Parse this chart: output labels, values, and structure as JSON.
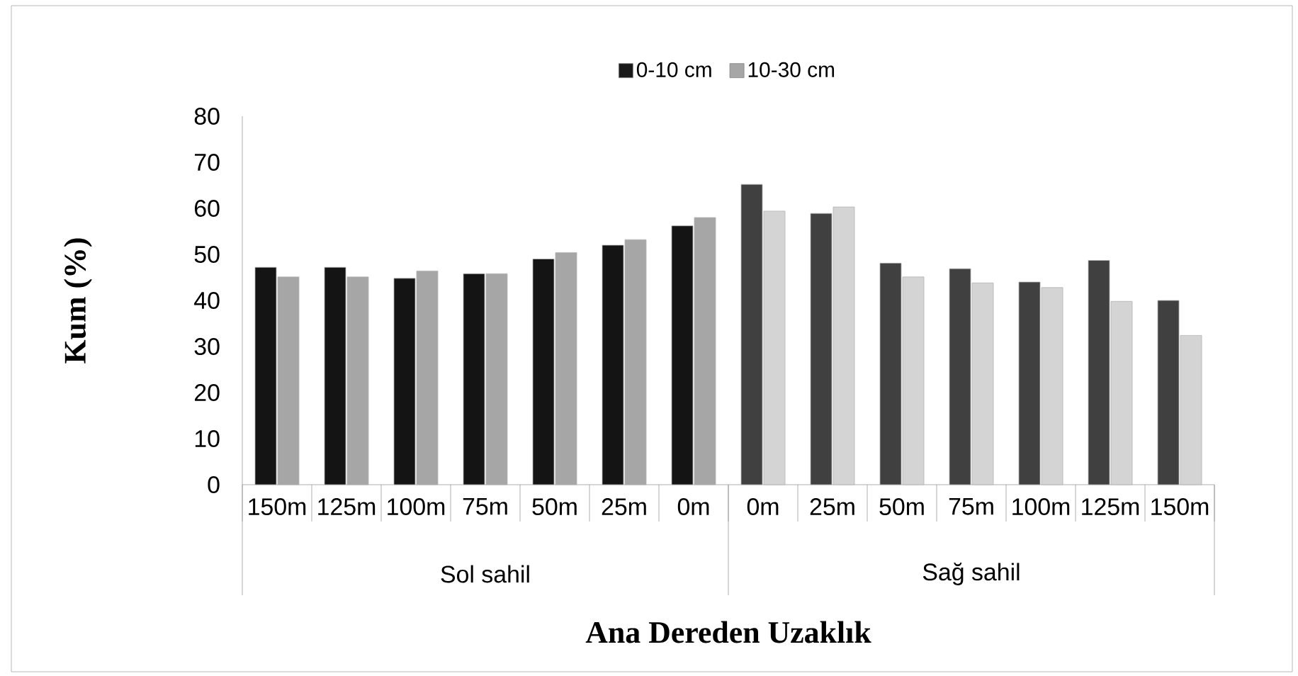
{
  "chart_data": {
    "type": "bar",
    "xlabel": "Ana Dereden Uzaklık",
    "ylabel": "Kum (%)",
    "categories": [
      "150m",
      "125m",
      "100m",
      "75m",
      "50m",
      "25m",
      "0m",
      "0m",
      "25m",
      "50m",
      "75m",
      "100m",
      "125m",
      "150m"
    ],
    "series": [
      {
        "name": "0-10 cm",
        "color": "#1a1a1a",
        "colors": [
          "#141414",
          "#141414",
          "#141414",
          "#141414",
          "#141414",
          "#141414",
          "#141414",
          "#404040",
          "#404040",
          "#404040",
          "#404040",
          "#404040",
          "#404040",
          "#404040"
        ],
        "values": [
          47.2,
          47.2,
          44.8,
          45.8,
          49,
          52,
          56.2,
          65.2,
          58.9,
          48.1,
          46.9,
          44,
          48.7,
          40
        ]
      },
      {
        "name": "10-30 cm",
        "color": "#a6a6a6",
        "colors": [
          "#a6a6a6",
          "#a6a6a6",
          "#a6a6a6",
          "#a6a6a6",
          "#a6a6a6",
          "#a6a6a6",
          "#a6a6a6",
          "#d4d4d4",
          "#d4d4d4",
          "#d4d4d4",
          "#d4d4d4",
          "#d4d4d4",
          "#d4d4d4",
          "#d4d4d4"
        ],
        "values": [
          45.1,
          45.1,
          46.4,
          45.8,
          50.4,
          53.2,
          58,
          59.4,
          60.3,
          45.1,
          43.8,
          42.8,
          39.8,
          32.4
        ]
      }
    ],
    "annotations": [
      "Sol sahil",
      "Sağ sahil"
    ],
    "ylim": [
      0,
      80
    ],
    "yticks": [
      0,
      10,
      20,
      30,
      40,
      50,
      60,
      70,
      80
    ],
    "legend": "top",
    "grid": false
  }
}
